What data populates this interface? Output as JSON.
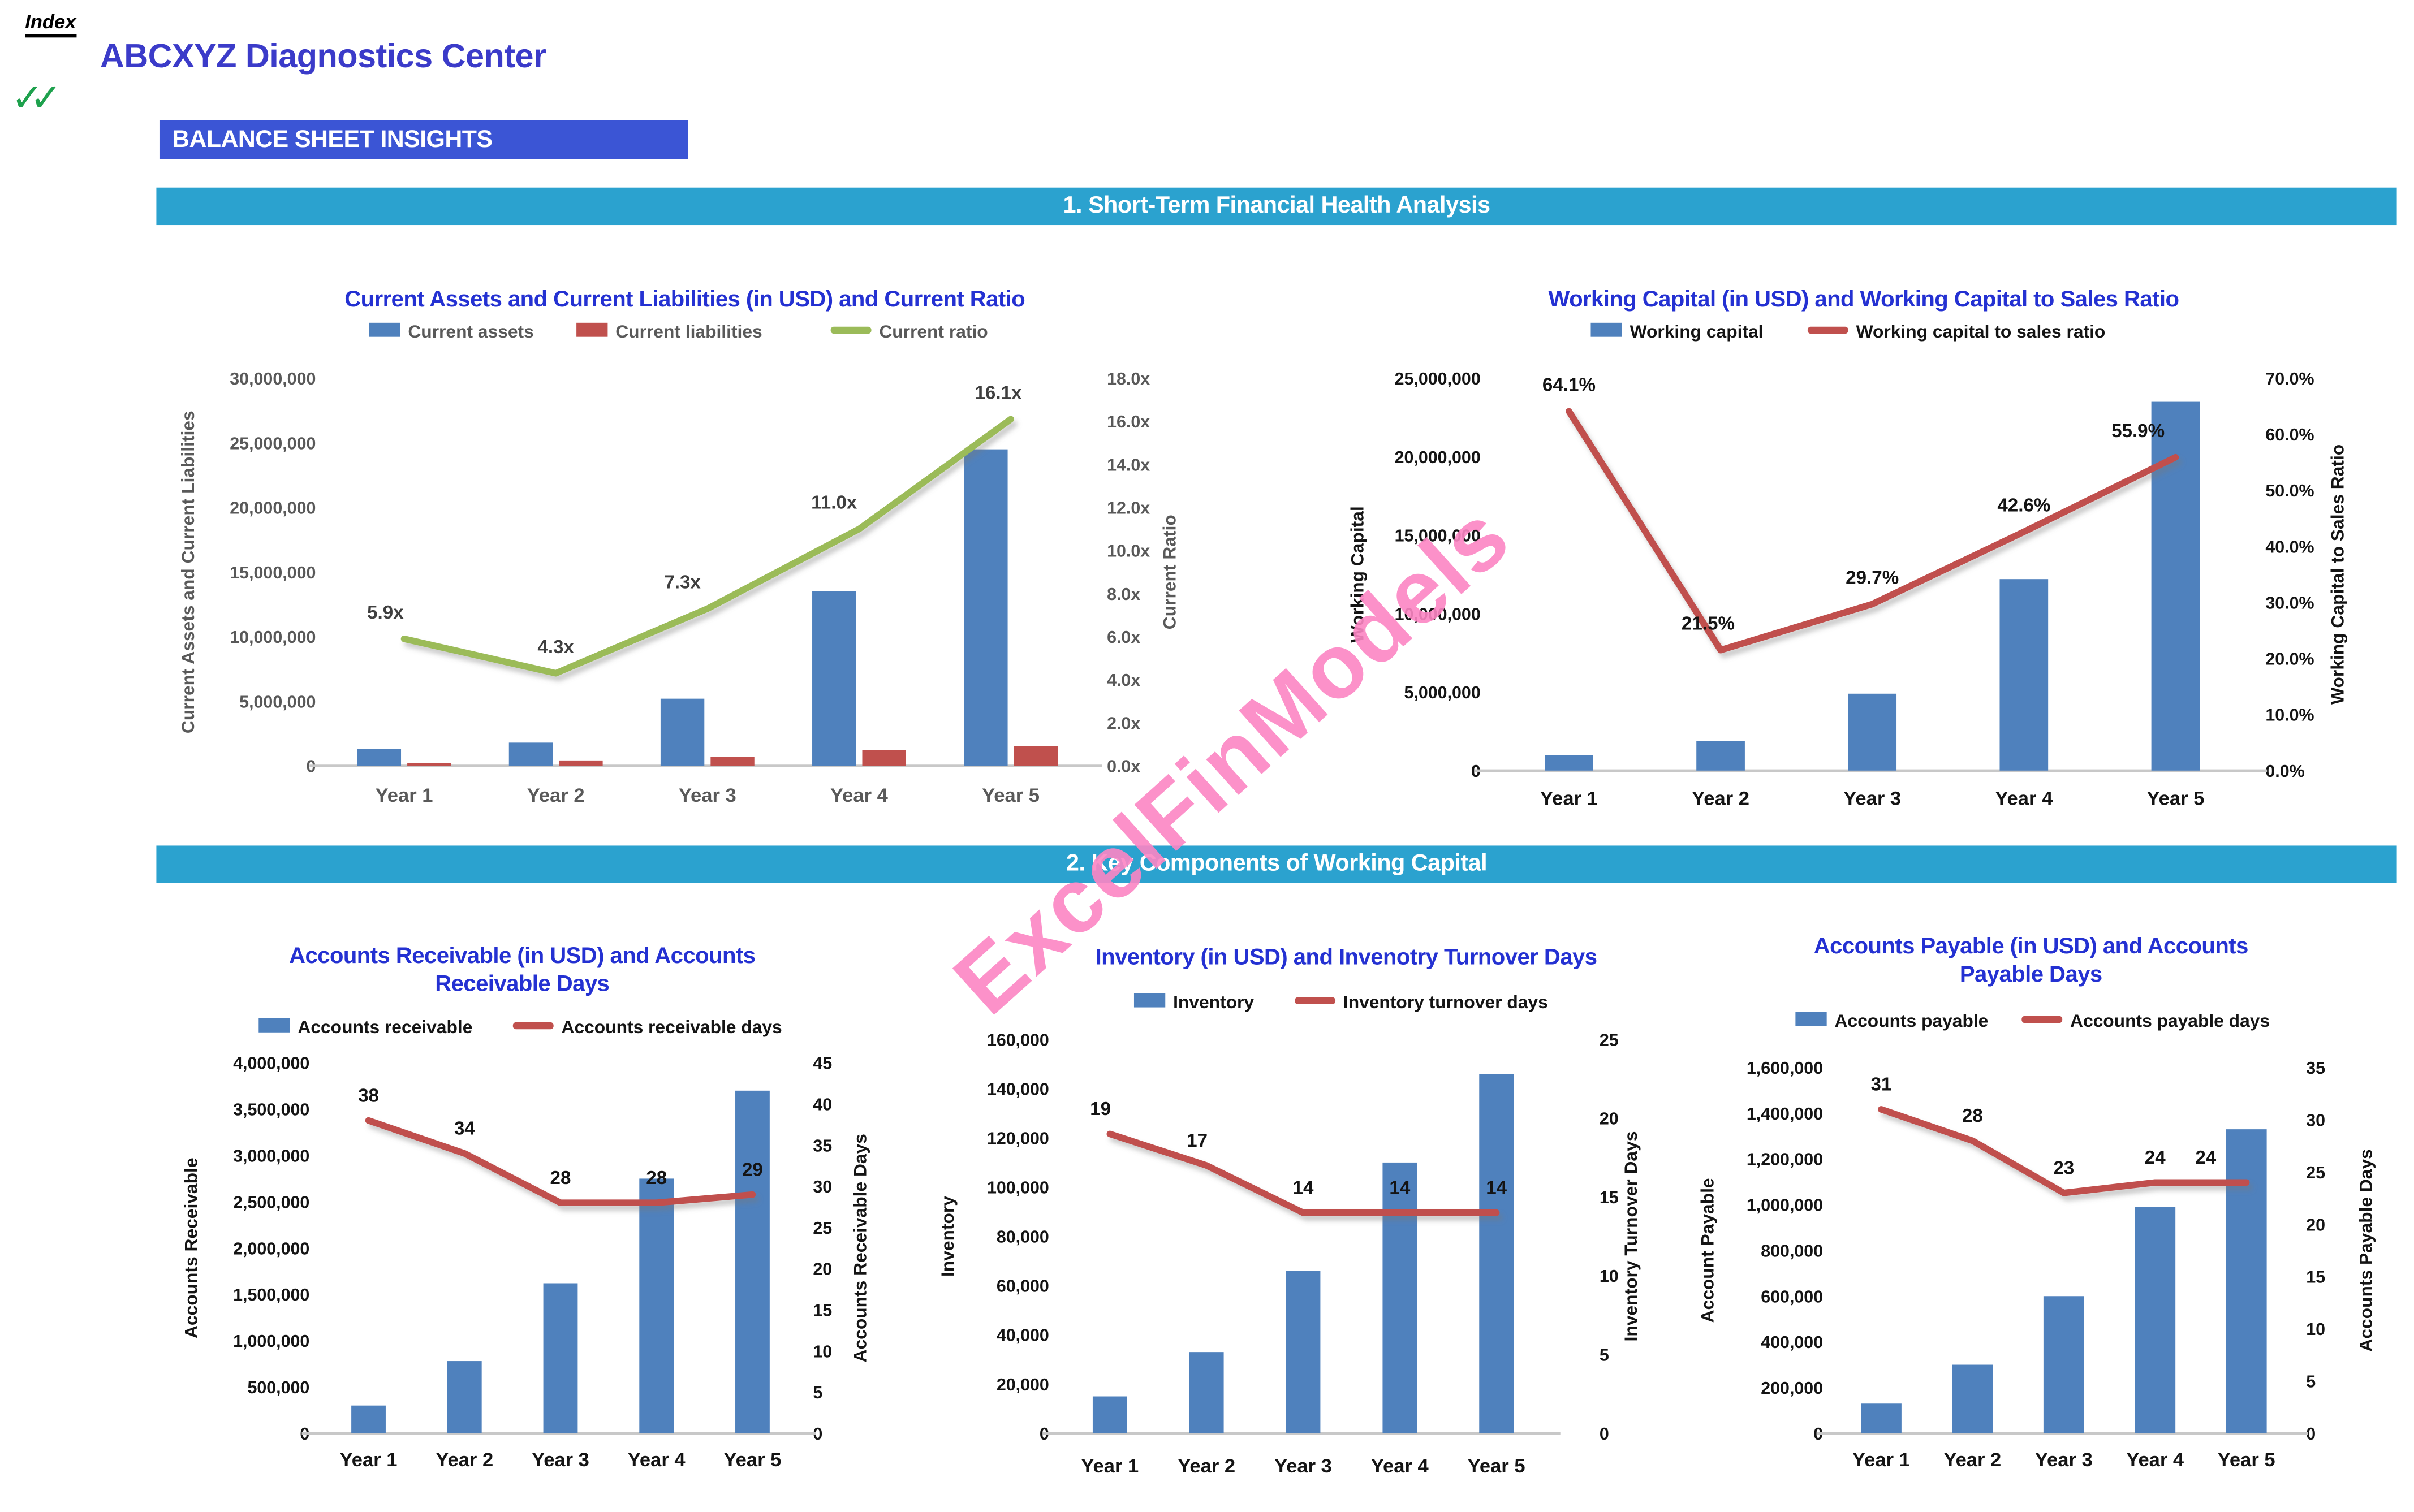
{
  "page": {
    "index_label": "Index",
    "title": "ABCXYZ Diagnostics Center",
    "subtitle_box": "BALANCE SHEET INSIGHTS",
    "checkmarks": "✓✓",
    "sections": [
      {
        "title": "1. Short-Term Financial Health Analysis"
      },
      {
        "title": "2. Key Components of Working Capital"
      }
    ]
  },
  "watermark": {
    "text": "ExcelFinModels"
  },
  "colors": {
    "bar_blue": "#4F81BD",
    "bar_red": "#C0504D",
    "line_green": "#9BBB59",
    "line_red": "#C0504D",
    "chart_title_blue": "#2431D2",
    "main_title_blue": "#3B3BC9",
    "subtitle_box_bg": "#3B55D5",
    "banner_teal": "#2BA2CF",
    "checkmark_green": "#1EA14D",
    "axis_gray": "#595959",
    "axis_dark": "#141414",
    "axis_line_gray": "#C8C8C8",
    "watermark_pink": "#FC86C4"
  },
  "chart_data": [
    {
      "type": "bar",
      "subtype": "bar+line dual axis",
      "title_lines": [
        "Current Assets and Current Liabilities (in USD) and Current Ratio"
      ],
      "categories": [
        "Year 1",
        "Year 2",
        "Year 3",
        "Year 4",
        "Year 5"
      ],
      "series": [
        {
          "name": "Current assets",
          "type": "bar",
          "axis": "left",
          "color": "#4F81BD",
          "values": [
            1300000,
            1800000,
            5200000,
            13500000,
            24500000
          ]
        },
        {
          "name": "Current liabilities",
          "type": "bar",
          "axis": "left",
          "color": "#C0504D",
          "values": [
            220000,
            420000,
            710000,
            1230000,
            1520000
          ]
        },
        {
          "name": "Current ratio",
          "type": "line",
          "axis": "right",
          "color": "#9BBB59",
          "values": [
            5.9,
            4.3,
            7.3,
            11.0,
            16.1
          ],
          "labels": [
            "5.9x",
            "4.3x",
            "7.3x",
            "11.0x",
            "16.1x"
          ]
        }
      ],
      "left_axis": {
        "title": "Current Assets and Current Liabilities",
        "min": 0,
        "max": 30000000,
        "step": 5000000,
        "tick_labels": [
          "30,000,000",
          "25,000,000",
          "20,000,000",
          "15,000,000",
          "10,000,000",
          "5,000,000",
          "0"
        ]
      },
      "right_axis": {
        "title": "Current Ratio",
        "min": 0,
        "max": 18,
        "step": 2,
        "tick_labels": [
          "18.0x",
          "16.0x",
          "14.0x",
          "12.0x",
          "10.0x",
          "8.0x",
          "6.0x",
          "4.0x",
          "2.0x",
          "0.0x"
        ]
      },
      "grid": false,
      "legend_position": "top",
      "text_color": "#595959",
      "label_color": "#3F3F3F"
    },
    {
      "type": "bar",
      "subtype": "bar+line dual axis",
      "title_lines": [
        "Working Capital (in USD) and Working Capital to Sales Ratio"
      ],
      "categories": [
        "Year 1",
        "Year 2",
        "Year 3",
        "Year 4",
        "Year 5"
      ],
      "series": [
        {
          "name": "Working capital",
          "type": "bar",
          "axis": "left",
          "color": "#4F81BD",
          "values": [
            1000000,
            1900000,
            4900000,
            12200000,
            23500000
          ]
        },
        {
          "name": "Working capital to sales ratio",
          "type": "line",
          "axis": "right",
          "color": "#C0504D",
          "values": [
            64.1,
            21.5,
            29.7,
            42.6,
            55.9
          ],
          "labels": [
            "64.1%",
            "21.5%",
            "29.7%",
            "42.6%",
            "55.9%"
          ]
        }
      ],
      "left_axis": {
        "title": "Working Capital",
        "min": 0,
        "max": 25000000,
        "step": 5000000,
        "tick_labels": [
          "25,000,000",
          "20,000,000",
          "15,000,000",
          "10,000,000",
          "5,000,000",
          "0"
        ]
      },
      "right_axis": {
        "title": "Working Capital to Sales Ratio",
        "min": 0,
        "max": 70,
        "step": 10,
        "tick_labels": [
          "70.0%",
          "60.0%",
          "50.0%",
          "40.0%",
          "30.0%",
          "20.0%",
          "10.0%",
          "0.0%"
        ]
      },
      "grid": false,
      "legend_position": "top",
      "text_color": "#141414",
      "label_color": "#141414"
    },
    {
      "type": "bar",
      "subtype": "bar+line dual axis",
      "title_lines": [
        "Accounts Receivable (in USD) and Accounts",
        "Receivable Days"
      ],
      "categories": [
        "Year 1",
        "Year 2",
        "Year 3",
        "Year 4",
        "Year 5"
      ],
      "series": [
        {
          "name": "Accounts receivable",
          "type": "bar",
          "axis": "left",
          "color": "#4F81BD",
          "values": [
            300000,
            780000,
            1620000,
            2750000,
            3700000
          ]
        },
        {
          "name": "Accounts receivable days",
          "type": "line",
          "axis": "right",
          "color": "#C0504D",
          "values": [
            38,
            34,
            28,
            28,
            29
          ],
          "labels": [
            "38",
            "34",
            "28",
            "28",
            "29"
          ]
        }
      ],
      "left_axis": {
        "title": "Accounts Receivable",
        "min": 0,
        "max": 4000000,
        "step": 500000,
        "tick_labels": [
          "4,000,000",
          "3,500,000",
          "3,000,000",
          "2,500,000",
          "2,000,000",
          "1,500,000",
          "1,000,000",
          "500,000",
          "0"
        ]
      },
      "right_axis": {
        "title": "Accounts Receivable Days",
        "min": 0,
        "max": 45,
        "step": 5,
        "tick_labels": [
          "45",
          "40",
          "35",
          "30",
          "25",
          "20",
          "15",
          "10",
          "5",
          "0"
        ]
      },
      "grid": false,
      "legend_position": "top",
      "text_color": "#141414",
      "label_color": "#141414"
    },
    {
      "type": "bar",
      "subtype": "bar+line dual axis",
      "title_lines": [
        "Inventory (in USD) and Invenotry Turnover Days"
      ],
      "categories": [
        "Year 1",
        "Year 2",
        "Year 3",
        "Year 4",
        "Year 5"
      ],
      "series": [
        {
          "name": "Inventory",
          "type": "bar",
          "axis": "left",
          "color": "#4F81BD",
          "values": [
            15000,
            33000,
            66000,
            110000,
            146000
          ]
        },
        {
          "name": "Inventory turnover days",
          "type": "line",
          "axis": "right",
          "color": "#C0504D",
          "values": [
            19,
            17,
            14,
            14,
            14
          ],
          "labels": [
            "19",
            "17",
            "14",
            "14",
            "14"
          ]
        }
      ],
      "left_axis": {
        "title": "Inventory",
        "min": 0,
        "max": 160000,
        "step": 20000,
        "tick_labels": [
          "160,000",
          "140,000",
          "120,000",
          "100,000",
          "80,000",
          "60,000",
          "40,000",
          "20,000",
          "0"
        ]
      },
      "right_axis": {
        "title": "Inventory Turnover Days",
        "min": 0,
        "max": 25,
        "step": 5,
        "tick_labels": [
          "25",
          "20",
          "15",
          "10",
          "5",
          "0"
        ]
      },
      "grid": false,
      "legend_position": "top",
      "text_color": "#141414",
      "label_color": "#141414"
    },
    {
      "type": "bar",
      "subtype": "bar+line dual axis",
      "title_lines": [
        "Accounts Payable (in USD) and Accounts",
        "Payable Days"
      ],
      "categories": [
        "Year 1",
        "Year 2",
        "Year 3",
        "Year 4",
        "Year 5"
      ],
      "series": [
        {
          "name": "Accounts payable",
          "type": "bar",
          "axis": "left",
          "color": "#4F81BD",
          "values": [
            130000,
            300000,
            600000,
            990000,
            1330000
          ]
        },
        {
          "name": "Accounts payable days",
          "type": "line",
          "axis": "right",
          "color": "#C0504D",
          "values": [
            31,
            28,
            23,
            24,
            24
          ],
          "labels": [
            "31",
            "28",
            "23",
            "24",
            "24"
          ]
        }
      ],
      "left_axis": {
        "title": "Account Payable",
        "min": 0,
        "max": 1600000,
        "step": 200000,
        "tick_labels": [
          "1,600,000",
          "1,400,000",
          "1,200,000",
          "1,000,000",
          "800,000",
          "600,000",
          "400,000",
          "200,000",
          "0"
        ]
      },
      "right_axis": {
        "title": "Accounts Payable Days",
        "min": 0,
        "max": 35,
        "step": 5,
        "tick_labels": [
          "35",
          "30",
          "25",
          "20",
          "15",
          "10",
          "5",
          "0"
        ]
      },
      "grid": false,
      "legend_position": "top",
      "text_color": "#141414",
      "label_color": "#141414"
    }
  ]
}
